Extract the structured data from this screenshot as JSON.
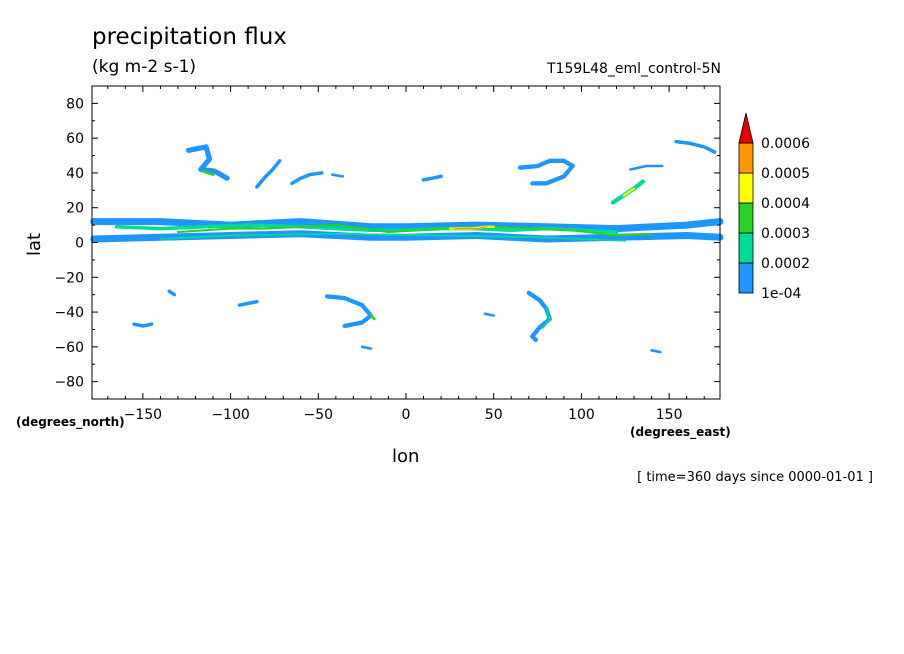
{
  "chart_data": {
    "type": "heatmap",
    "title": "precipitation flux",
    "units": "(kg m-2 s-1)",
    "run_label": "T159L48_eml_control-5N",
    "xlabel": "lon",
    "ylabel": "lat",
    "x_unit_label": "(degrees_east)",
    "y_unit_label": "(degrees_north)",
    "time_label": "[ time=360 days since 0000-01-01 ]",
    "xlim": [
      -179,
      179
    ],
    "ylim": [
      -90,
      90
    ],
    "xticks": [
      -150,
      -100,
      -50,
      0,
      50,
      100,
      150
    ],
    "yticks": [
      80,
      60,
      40,
      20,
      0,
      -20,
      -40,
      -60,
      -80
    ],
    "colorbar": {
      "levels": [
        "1e-04",
        "0.0002",
        "0.0003",
        "0.0004",
        "0.0005",
        "0.0006"
      ],
      "colors": [
        "#1e96ff",
        "#00dc96",
        "#28d228",
        "#ffff00",
        "#ff9600",
        "#e60000"
      ]
    },
    "features": [
      {
        "lon": [
          -178,
          -140,
          -100,
          -60,
          -20,
          0,
          40,
          80,
          120,
          160,
          179
        ],
        "lat": [
          12,
          12,
          10,
          12,
          9,
          9,
          10,
          9,
          8,
          10,
          12
        ],
        "width_deg": 4,
        "level": 0
      },
      {
        "lon": [
          -178,
          -140,
          -100,
          -60,
          -20,
          0,
          40,
          80,
          120,
          160,
          179
        ],
        "lat": [
          2,
          3,
          4,
          5,
          3,
          3,
          4,
          2,
          3,
          4,
          3
        ],
        "width_deg": 4,
        "level": 0
      },
      {
        "lon": [
          -165,
          -140,
          -115,
          -90,
          -60,
          -40,
          -20,
          0,
          20,
          40,
          60,
          80,
          100,
          120
        ],
        "lat": [
          9,
          8,
          9,
          10,
          9,
          8,
          7,
          7,
          8,
          8,
          7,
          8,
          7,
          6
        ],
        "width_deg": 2,
        "level": 1
      },
      {
        "lon": [
          -130,
          -100,
          -80,
          -40,
          -10,
          20,
          45,
          70,
          95,
          120,
          140
        ],
        "lat": [
          6,
          8,
          8,
          10,
          6,
          8,
          9,
          8,
          7,
          4,
          5
        ],
        "width_deg": 1.2,
        "level": 2
      },
      {
        "lon": [
          25,
          32,
          38,
          45,
          50
        ],
        "lat": [
          8,
          8,
          8,
          9,
          9
        ],
        "width_deg": 1.4,
        "level": 3
      },
      {
        "lon": [
          28,
          34,
          40,
          46
        ],
        "lat": [
          8,
          8,
          8,
          9
        ],
        "width_deg": 0.7,
        "level": 4
      },
      {
        "lon": [
          -140,
          -100,
          -40,
          20,
          75,
          125
        ],
        "lat": [
          2,
          4,
          5,
          4,
          3,
          1
        ],
        "width_deg": 1.0,
        "level": 1
      },
      {
        "lon": [
          -124,
          -114,
          -112,
          -117,
          -109,
          -102
        ],
        "lat": [
          53,
          55,
          48,
          42,
          41,
          37
        ],
        "width_deg": 3,
        "level": 0
      },
      {
        "lon": [
          -116,
          -110
        ],
        "lat": [
          41,
          39
        ],
        "width_deg": 1.5,
        "level": 2
      },
      {
        "lon": [
          -85,
          -80,
          -76,
          -72
        ],
        "lat": [
          32,
          38,
          42,
          47
        ],
        "width_deg": 2,
        "level": 0
      },
      {
        "lon": [
          -65,
          -60,
          -55,
          -48
        ],
        "lat": [
          34,
          37,
          39,
          40
        ],
        "width_deg": 2,
        "level": 0
      },
      {
        "lon": [
          -42,
          -36
        ],
        "lat": [
          39,
          38
        ],
        "width_deg": 1.5,
        "level": 0
      },
      {
        "lon": [
          10,
          15,
          20
        ],
        "lat": [
          36,
          37,
          38
        ],
        "width_deg": 2,
        "level": 0
      },
      {
        "lon": [
          65,
          75,
          82,
          90,
          95,
          90,
          80,
          72
        ],
        "lat": [
          43,
          44,
          47,
          47,
          44,
          38,
          34,
          34
        ],
        "width_deg": 2.5,
        "level": 0
      },
      {
        "lon": [
          118,
          124,
          130,
          135
        ],
        "lat": [
          23,
          27,
          31,
          35
        ],
        "width_deg": 2.5,
        "level": 1
      },
      {
        "lon": [
          124,
          130
        ],
        "lat": [
          27,
          31
        ],
        "width_deg": 1.2,
        "level": 3
      },
      {
        "lon": [
          128,
          137,
          146
        ],
        "lat": [
          42,
          44,
          44
        ],
        "width_deg": 1.5,
        "level": 0
      },
      {
        "lon": [
          154,
          162,
          170,
          176
        ],
        "lat": [
          58,
          57,
          55,
          52
        ],
        "width_deg": 2,
        "level": 0
      },
      {
        "lon": [
          -45,
          -35,
          -25,
          -20,
          -25,
          -35
        ],
        "lat": [
          -31,
          -32,
          -36,
          -42,
          -46,
          -48
        ],
        "width_deg": 2.5,
        "level": 0
      },
      {
        "lon": [
          -20,
          -18
        ],
        "lat": [
          -42,
          -44
        ],
        "width_deg": 1.5,
        "level": 2
      },
      {
        "lon": [
          -95,
          -90,
          -85
        ],
        "lat": [
          -36,
          -35,
          -34
        ],
        "width_deg": 2,
        "level": 0
      },
      {
        "lon": [
          -155,
          -150,
          -145
        ],
        "lat": [
          -47,
          -48,
          -47
        ],
        "width_deg": 2,
        "level": 0
      },
      {
        "lon": [
          -135,
          -132
        ],
        "lat": [
          -28,
          -30
        ],
        "width_deg": 2,
        "level": 0
      },
      {
        "lon": [
          70,
          76,
          80,
          82,
          76,
          72,
          74
        ],
        "lat": [
          -29,
          -33,
          -38,
          -44,
          -49,
          -54,
          -56
        ],
        "width_deg": 2.5,
        "level": 0
      },
      {
        "lon": [
          80,
          82,
          78
        ],
        "lat": [
          -38,
          -44,
          -49
        ],
        "width_deg": 1.2,
        "level": 1
      },
      {
        "lon": [
          -25,
          -20
        ],
        "lat": [
          -60,
          -61
        ],
        "width_deg": 1.5,
        "level": 0
      },
      {
        "lon": [
          140,
          145
        ],
        "lat": [
          -62,
          -63
        ],
        "width_deg": 1.5,
        "level": 0
      },
      {
        "lon": [
          45,
          50
        ],
        "lat": [
          -41,
          -42
        ],
        "width_deg": 1.5,
        "level": 0
      }
    ]
  }
}
